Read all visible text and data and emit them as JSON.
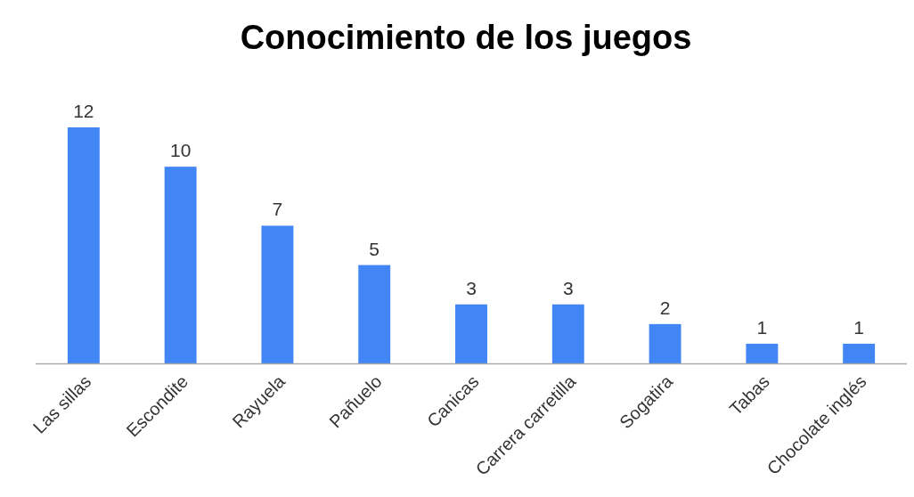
{
  "chart_data": {
    "type": "bar",
    "title": "Conocimiento de los juegos",
    "categories": [
      "Las sillas",
      "Escondite",
      "Rayuela",
      "Pañuelo",
      "Canicas",
      "Carrera carretilla",
      "Sogatira",
      "Tabas",
      "Chocolate inglés"
    ],
    "values": [
      12,
      10,
      7,
      5,
      3,
      3,
      2,
      1,
      1
    ],
    "color": "#4285f4",
    "data_labels": true
  }
}
